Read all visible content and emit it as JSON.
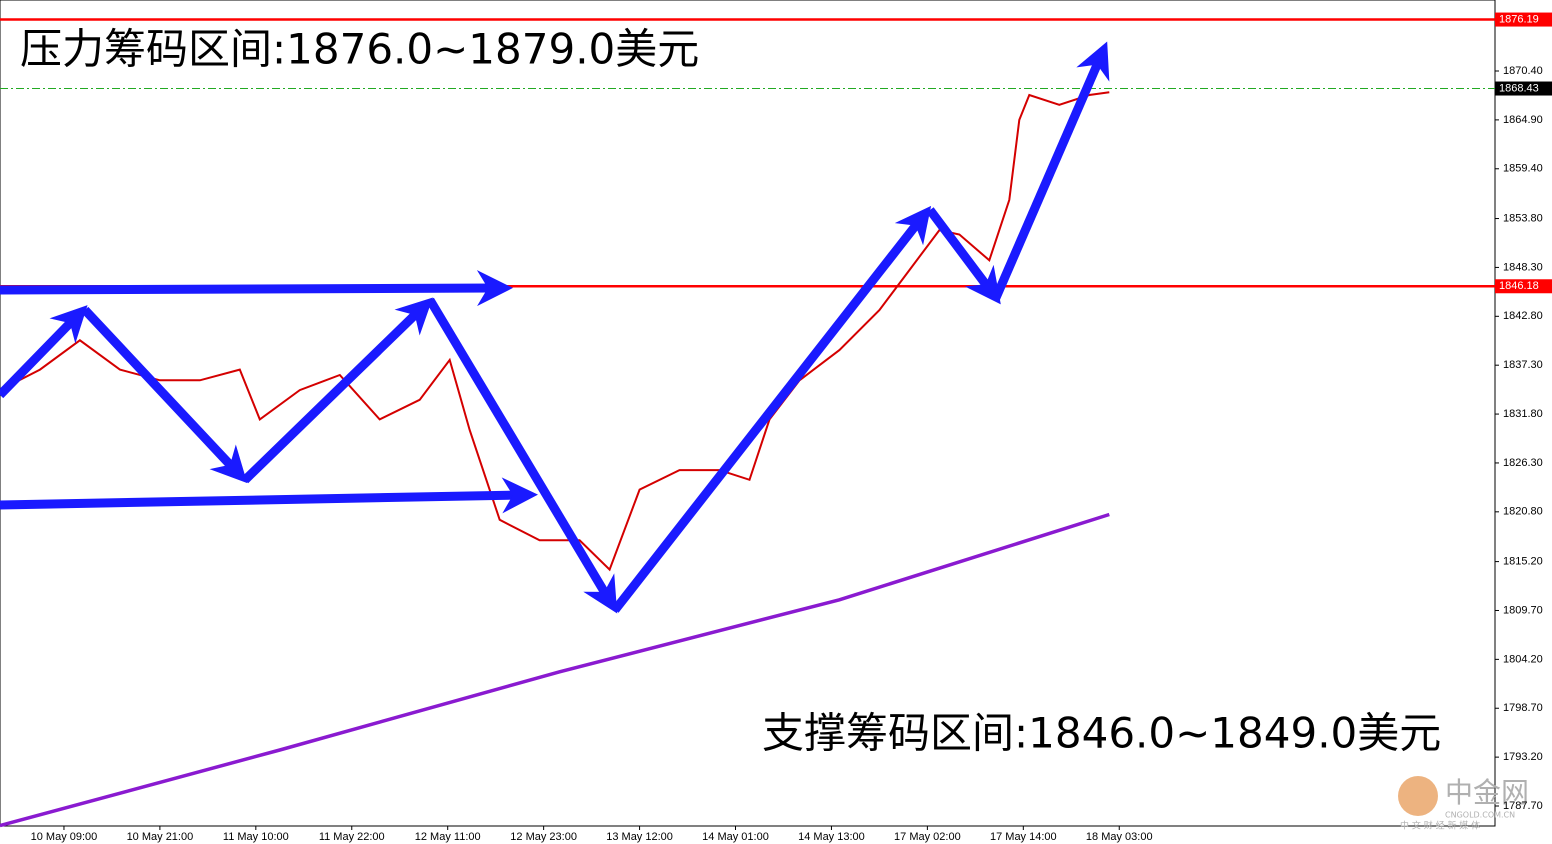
{
  "chart_data": {
    "type": "line",
    "annotations": [
      "压力筹码区间:1876.0~1879.0美元",
      "支撑筹码区间:1846.0~1849.0美元"
    ],
    "watermark": [
      "中金网",
      "CNGOLD.COM.CN",
      "中 文 财 经 新 媒 体"
    ],
    "xlim": [
      0,
      187
    ],
    "ylim": [
      1785.45,
      1878.39
    ],
    "xticks": [
      {
        "value": 8,
        "label": "10 May 09:00"
      },
      {
        "value": 20,
        "label": "10 May 21:00"
      },
      {
        "value": 32,
        "label": "11 May 10:00"
      },
      {
        "value": 44,
        "label": "11 May 22:00"
      },
      {
        "value": 56,
        "label": "12 May 11:00"
      },
      {
        "value": 68,
        "label": "12 May 23:00"
      },
      {
        "value": 80,
        "label": "13 May 12:00"
      },
      {
        "value": 92,
        "label": "14 May 01:00"
      },
      {
        "value": 104,
        "label": "14 May 13:00"
      },
      {
        "value": 116,
        "label": "17 May 02:00"
      },
      {
        "value": 128,
        "label": "17 May 14:00"
      },
      {
        "value": 140,
        "label": "18 May 03:00"
      }
    ],
    "yticks": [
      {
        "value": 1787.7,
        "label": "1787.70"
      },
      {
        "value": 1793.2,
        "label": "1793.20"
      },
      {
        "value": 1798.7,
        "label": "1798.70"
      },
      {
        "value": 1804.2,
        "label": "1804.20"
      },
      {
        "value": 1809.7,
        "label": "1809.70"
      },
      {
        "value": 1815.2,
        "label": "1815.20"
      },
      {
        "value": 1820.8,
        "label": "1820.80"
      },
      {
        "value": 1826.3,
        "label": "1826.30"
      },
      {
        "value": 1831.8,
        "label": "1831.80"
      },
      {
        "value": 1837.3,
        "label": "1837.30"
      },
      {
        "value": 1842.8,
        "label": "1842.80"
      },
      {
        "value": 1848.3,
        "label": "1848.30"
      },
      {
        "value": 1853.8,
        "label": "1853.80"
      },
      {
        "value": 1859.4,
        "label": "1859.40"
      },
      {
        "value": 1864.9,
        "label": "1864.90"
      },
      {
        "value": 1870.4,
        "label": "1870.40"
      }
    ],
    "levels": [
      {
        "value": 1876.19,
        "color": "#ff0000",
        "style": "solid"
      },
      {
        "value": 1868.43,
        "color": "#22aa22",
        "style": "dashdot"
      },
      {
        "value": 1846.18,
        "color": "#ff0000",
        "style": "solid"
      }
    ],
    "series": [
      {
        "color": "#d40000",
        "x": [
          0,
          5,
          10,
          15,
          20,
          25,
          30,
          32.5,
          37.5,
          42.5,
          47.5,
          52.5,
          56.25,
          58.75,
          62.5,
          67.5,
          72.5,
          76.25,
          80,
          85,
          90,
          93.75,
          96.25,
          100,
          105,
          110,
          113.75,
          117.5,
          120,
          123.75,
          126.25,
          127.5,
          128.75,
          132.5,
          136.25,
          138.75
        ],
        "values": [
          1834.5,
          1836.8,
          1840.1,
          1836.8,
          1835.6,
          1835.6,
          1836.8,
          1831.2,
          1834.5,
          1836.2,
          1831.2,
          1833.4,
          1837.9,
          1830.0,
          1819.9,
          1817.6,
          1817.6,
          1814.3,
          1823.3,
          1825.5,
          1825.5,
          1824.4,
          1831.2,
          1835.6,
          1839.0,
          1843.5,
          1848.0,
          1852.5,
          1852.0,
          1849.1,
          1855.9,
          1864.9,
          1867.7,
          1866.6,
          1867.7,
          1868.0
        ]
      },
      {
        "color": "#8a1ad0",
        "x": [
          0,
          35,
          70,
          105,
          138.75
        ],
        "values": [
          1785.5,
          1794.0,
          1802.8,
          1810.9,
          1820.5
        ]
      }
    ]
  }
}
